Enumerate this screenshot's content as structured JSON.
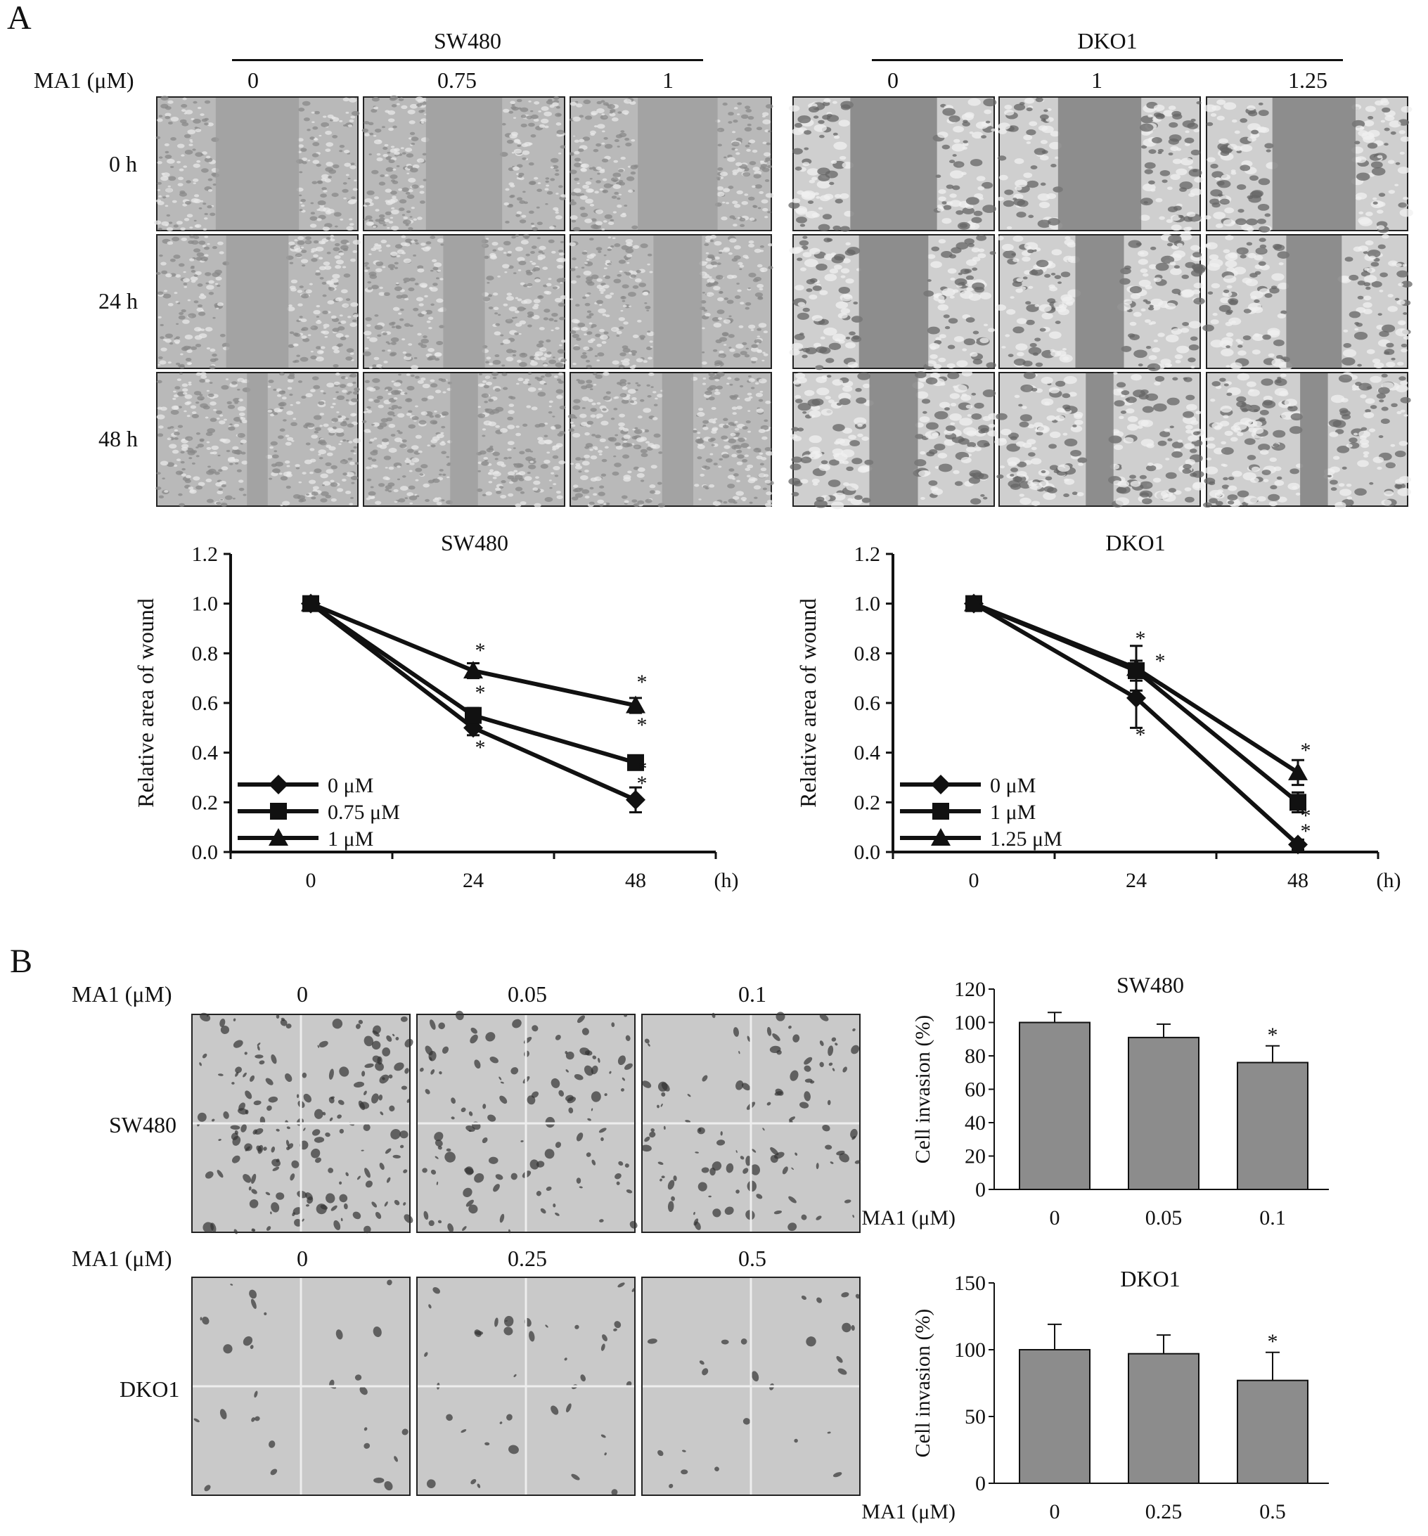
{
  "panelA": {
    "letter": "A",
    "dose_label": "MA1 (μM)",
    "left": {
      "title": "SW480",
      "doses": [
        "0",
        "0.75",
        "1"
      ]
    },
    "right": {
      "title": "DKO1",
      "doses": [
        "0",
        "1",
        "1.25"
      ]
    },
    "rows": [
      "0 h",
      "24 h",
      "48 h"
    ]
  },
  "panelB": {
    "letter": "B",
    "dose_label": "MA1 (μM)",
    "row1": {
      "cell": "SW480",
      "doses": [
        "0",
        "0.05",
        "0.1"
      ]
    },
    "row2": {
      "cell": "DKO1",
      "doses": [
        "0",
        "0.25",
        "0.5"
      ]
    }
  },
  "chart_data": [
    {
      "type": "line",
      "title": "SW480",
      "xlabel": "(h)",
      "ylabel": "Relative area of wound",
      "x": [
        0,
        24,
        48
      ],
      "ylim": [
        0,
        1.2
      ],
      "yticks": [
        "0.0",
        "0.2",
        "0.4",
        "0.6",
        "0.8",
        "1.0",
        "1.2"
      ],
      "legend_position": "bottom-left",
      "series": [
        {
          "name": "0 μM",
          "marker": "diamond",
          "values": [
            1.0,
            0.5,
            0.21
          ],
          "errors": [
            0,
            0.03,
            0.05
          ]
        },
        {
          "name": "0.75 μM",
          "marker": "square",
          "values": [
            1.0,
            0.55,
            0.36
          ],
          "errors": [
            0,
            0.03,
            0.02
          ]
        },
        {
          "name": "1 μM",
          "marker": "triangle",
          "values": [
            1.0,
            0.73,
            0.59
          ],
          "errors": [
            0,
            0.03,
            0.03
          ]
        }
      ],
      "significance": "*"
    },
    {
      "type": "line",
      "title": "DKO1",
      "xlabel": "(h)",
      "ylabel": "Relative area of wound",
      "x": [
        0,
        24,
        48
      ],
      "ylim": [
        0,
        1.2
      ],
      "yticks": [
        "0.0",
        "0.2",
        "0.4",
        "0.6",
        "0.8",
        "1.0",
        "1.2"
      ],
      "legend_position": "bottom-left",
      "series": [
        {
          "name": "0 μM",
          "marker": "diamond",
          "values": [
            1.0,
            0.62,
            0.03
          ],
          "errors": [
            0,
            0.12,
            0.02
          ]
        },
        {
          "name": "1 μM",
          "marker": "square",
          "values": [
            1.0,
            0.73,
            0.2
          ],
          "errors": [
            0,
            0.04,
            0.04
          ]
        },
        {
          "name": "1.25 μM",
          "marker": "triangle",
          "values": [
            1.0,
            0.74,
            0.32
          ],
          "errors": [
            0,
            0.09,
            0.05
          ]
        }
      ],
      "significance": "*"
    },
    {
      "type": "bar",
      "title": "SW480",
      "ylabel": "Cell invasion (%)",
      "xlabel": "MA1 (μM)",
      "categories": [
        "0",
        "0.05",
        "0.1"
      ],
      "values": [
        100,
        91,
        76
      ],
      "errors": [
        6,
        8,
        10
      ],
      "ylim": [
        0,
        120
      ],
      "yticks": [
        "0",
        "20",
        "40",
        "60",
        "80",
        "100",
        "120"
      ],
      "significant": [
        false,
        false,
        true
      ]
    },
    {
      "type": "bar",
      "title": "DKO1",
      "ylabel": "Cell invasion (%)",
      "xlabel": "MA1 (μM)",
      "categories": [
        "0",
        "0.25",
        "0.5"
      ],
      "values": [
        100,
        97,
        77
      ],
      "errors": [
        19,
        14,
        21
      ],
      "ylim": [
        0,
        150
      ],
      "yticks": [
        "0",
        "50",
        "100",
        "150"
      ],
      "significant": [
        false,
        false,
        true
      ]
    }
  ]
}
